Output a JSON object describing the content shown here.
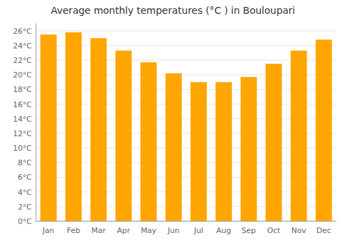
{
  "chart_data": {
    "type": "bar",
    "title": "Average monthly temperatures (°C ) in Bouloupari",
    "categories": [
      "Jan",
      "Feb",
      "Mar",
      "Apr",
      "May",
      "Jun",
      "Jul",
      "Aug",
      "Sep",
      "Oct",
      "Nov",
      "Dec"
    ],
    "values": [
      25.5,
      25.8,
      25.0,
      23.3,
      21.7,
      20.2,
      19.0,
      19.0,
      19.7,
      21.5,
      23.3,
      24.8
    ],
    "color": "#FFA500",
    "ylim": [
      0,
      27
    ],
    "yticks": [
      {
        "value": 0,
        "label": "0°C"
      },
      {
        "value": 2,
        "label": "2°C"
      },
      {
        "value": 4,
        "label": "4°C"
      },
      {
        "value": 6,
        "label": "6°C"
      },
      {
        "value": 8,
        "label": "8°C"
      },
      {
        "value": 10,
        "label": "10°C"
      },
      {
        "value": 12,
        "label": "12°C"
      },
      {
        "value": 14,
        "label": "14°C"
      },
      {
        "value": 16,
        "label": "16°C"
      },
      {
        "value": 18,
        "label": "18°C"
      },
      {
        "value": 20,
        "label": "20°C"
      },
      {
        "value": 22,
        "label": "22°C"
      },
      {
        "value": 24,
        "label": "24°C"
      },
      {
        "value": 26,
        "label": "26°C"
      }
    ],
    "grid": true
  }
}
